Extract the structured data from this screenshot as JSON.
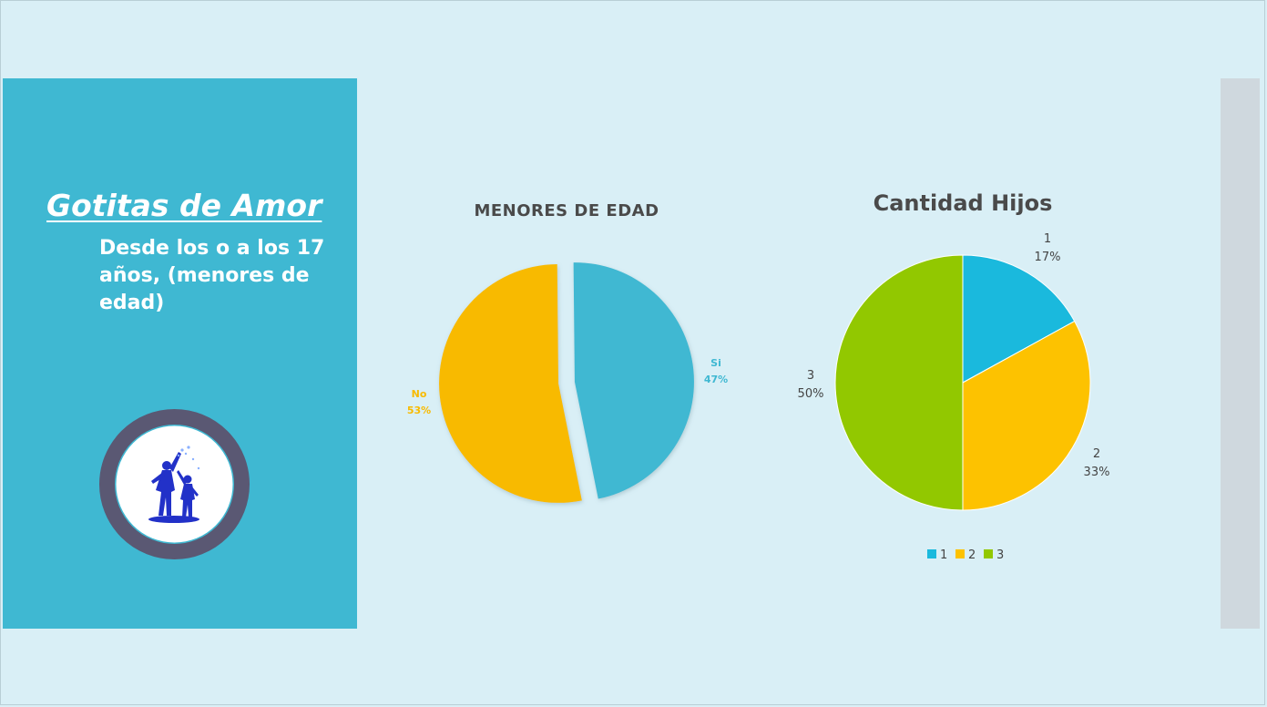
{
  "panel": {
    "title": "Gotitas de Amor",
    "subtitle": "Desde los o a los 17 años, (menores de edad)"
  },
  "colors": {
    "background": "#d9eff6",
    "panel": "#3fb8d2",
    "blue": "#3fb8d2",
    "yellow": "#f8ba00",
    "green": "#92c800",
    "cyan": "#1ab9dd",
    "amber": "#fdc200"
  },
  "chart_data": [
    {
      "type": "pie",
      "title": "MENORES DE EDAD",
      "slices": [
        {
          "label": "Si",
          "value": 47,
          "percent_label": "47%",
          "color": "#3fb8d2"
        },
        {
          "label": "No",
          "value": 53,
          "percent_label": "53%",
          "color": "#f8ba00"
        }
      ],
      "exploded": true,
      "legend": "none"
    },
    {
      "type": "pie",
      "title": "Cantidad Hijos",
      "slices": [
        {
          "label": "1",
          "value": 17,
          "percent_label": "17%",
          "color": "#1ab9dd"
        },
        {
          "label": "2",
          "value": 33,
          "percent_label": "33%",
          "color": "#fdc200"
        },
        {
          "label": "3",
          "value": 50,
          "percent_label": "50%",
          "color": "#92c800"
        }
      ],
      "legend": "bottom",
      "legend_items": [
        "1",
        "2",
        "3"
      ]
    }
  ]
}
